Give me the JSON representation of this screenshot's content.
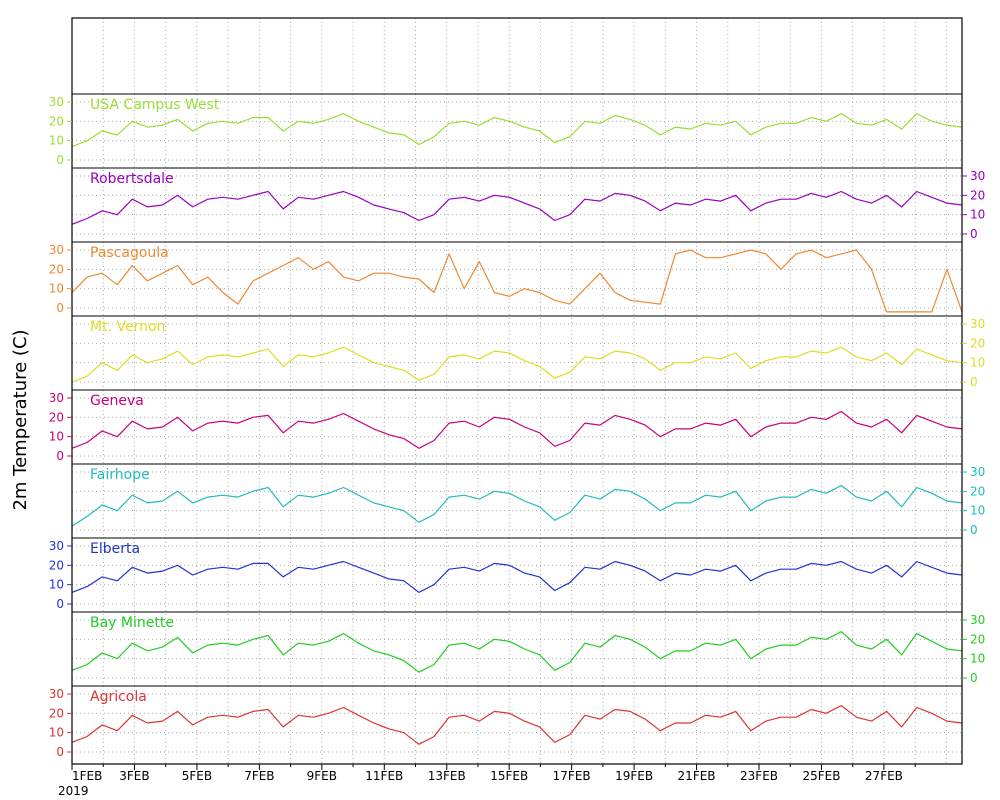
{
  "chart_data": {
    "type": "line",
    "ylabel": "2m Temperature (C)",
    "x_axis": {
      "tick_labels": [
        "1FEB",
        "3FEB",
        "5FEB",
        "7FEB",
        "9FEB",
        "11FEB",
        "13FEB",
        "15FEB",
        "17FEB",
        "19FEB",
        "21FEB",
        "23FEB",
        "25FEB",
        "27FEB"
      ],
      "year_label": "2019",
      "range_days": [
        0,
        28.5
      ]
    },
    "ylim": [
      0,
      30
    ],
    "y_ticks": [
      0,
      10,
      20,
      30
    ],
    "grid": true,
    "series": [
      {
        "name": "USA Campus West",
        "color": "#99dd33",
        "axis": "left",
        "values": [
          7,
          10,
          15,
          13,
          20,
          17,
          18,
          21,
          15,
          19,
          20,
          19,
          22,
          22,
          15,
          20,
          19,
          21,
          24,
          20,
          17,
          14,
          13,
          8,
          12,
          19,
          20,
          18,
          22,
          20,
          17,
          15,
          9,
          12,
          20,
          19,
          23,
          21,
          18,
          13,
          17,
          16,
          19,
          18,
          20,
          13,
          17,
          19,
          19,
          22,
          20,
          24,
          19,
          18,
          21,
          16,
          24,
          20,
          18,
          17
        ]
      },
      {
        "name": "Robertsdale",
        "color": "#9900bb",
        "axis": "right",
        "values": [
          5,
          8,
          12,
          10,
          18,
          14,
          15,
          20,
          14,
          18,
          19,
          18,
          20,
          22,
          13,
          19,
          18,
          20,
          22,
          19,
          15,
          13,
          11,
          7,
          10,
          18,
          19,
          17,
          20,
          19,
          16,
          13,
          7,
          10,
          18,
          17,
          21,
          20,
          17,
          12,
          16,
          15,
          18,
          17,
          20,
          12,
          16,
          18,
          18,
          21,
          19,
          22,
          18,
          16,
          20,
          14,
          22,
          19,
          16,
          15
        ]
      },
      {
        "name": "Pascagoula",
        "color": "#ee8833",
        "axis": "left",
        "values": [
          8,
          16,
          18,
          12,
          22,
          14,
          18,
          22,
          12,
          16,
          8,
          2,
          14,
          18,
          22,
          26,
          20,
          24,
          16,
          14,
          18,
          18,
          16,
          15,
          8,
          28,
          10,
          24,
          8,
          6,
          10,
          8,
          4,
          2,
          10,
          18,
          8,
          4,
          3,
          2,
          28,
          30,
          26,
          26,
          28,
          30,
          28,
          20,
          28,
          30,
          26,
          28,
          30,
          20,
          -2,
          -2,
          -2,
          -2,
          20,
          -2
        ]
      },
      {
        "name": "Mt. Vernon",
        "color": "#dddd22",
        "axis": "right",
        "values": [
          0,
          3,
          10,
          6,
          14,
          10,
          12,
          16,
          9,
          13,
          14,
          13,
          15,
          17,
          8,
          14,
          13,
          15,
          18,
          14,
          10,
          8,
          6,
          1,
          4,
          13,
          14,
          12,
          16,
          15,
          11,
          8,
          2,
          5,
          13,
          12,
          16,
          15,
          12,
          6,
          10,
          10,
          13,
          12,
          15,
          7,
          11,
          13,
          13,
          16,
          15,
          18,
          13,
          11,
          15,
          9,
          17,
          14,
          11,
          10
        ]
      },
      {
        "name": "Geneva",
        "color": "#cc0077",
        "axis": "left",
        "values": [
          4,
          7,
          13,
          10,
          18,
          14,
          15,
          20,
          13,
          17,
          18,
          17,
          20,
          21,
          12,
          18,
          17,
          19,
          22,
          18,
          14,
          11,
          9,
          4,
          8,
          17,
          18,
          15,
          20,
          19,
          15,
          12,
          5,
          8,
          17,
          16,
          21,
          19,
          16,
          10,
          14,
          14,
          17,
          16,
          19,
          10,
          15,
          17,
          17,
          20,
          19,
          23,
          17,
          15,
          19,
          12,
          21,
          18,
          15,
          14
        ]
      },
      {
        "name": "Fairhope",
        "color": "#22bbbb",
        "axis": "right",
        "values": [
          2,
          7,
          13,
          10,
          18,
          14,
          15,
          20,
          14,
          17,
          18,
          17,
          20,
          22,
          12,
          18,
          17,
          19,
          22,
          18,
          14,
          12,
          10,
          4,
          8,
          17,
          18,
          16,
          20,
          19,
          15,
          12,
          5,
          9,
          18,
          16,
          21,
          20,
          16,
          10,
          14,
          14,
          18,
          17,
          20,
          10,
          15,
          17,
          17,
          21,
          19,
          23,
          17,
          15,
          20,
          12,
          22,
          19,
          15,
          14
        ]
      },
      {
        "name": "Elberta",
        "color": "#2233cc",
        "axis": "left",
        "values": [
          6,
          9,
          14,
          12,
          19,
          16,
          17,
          20,
          15,
          18,
          19,
          18,
          21,
          21,
          14,
          19,
          18,
          20,
          22,
          19,
          16,
          13,
          12,
          6,
          10,
          18,
          19,
          17,
          21,
          20,
          16,
          14,
          7,
          11,
          19,
          18,
          22,
          20,
          17,
          12,
          16,
          15,
          18,
          17,
          20,
          12,
          16,
          18,
          18,
          21,
          20,
          22,
          18,
          16,
          20,
          14,
          22,
          19,
          16,
          15
        ]
      },
      {
        "name": "Bay Minette",
        "color": "#22cc22",
        "axis": "right",
        "values": [
          4,
          7,
          13,
          10,
          18,
          14,
          16,
          21,
          13,
          17,
          18,
          17,
          20,
          22,
          12,
          18,
          17,
          19,
          23,
          18,
          14,
          12,
          9,
          3,
          7,
          17,
          18,
          15,
          20,
          19,
          15,
          12,
          4,
          8,
          18,
          16,
          22,
          20,
          16,
          10,
          14,
          14,
          18,
          17,
          20,
          10,
          15,
          17,
          17,
          21,
          20,
          24,
          17,
          15,
          20,
          12,
          23,
          19,
          15,
          14
        ]
      },
      {
        "name": "Agricola",
        "color": "#dd3333",
        "axis": "left",
        "values": [
          5,
          8,
          14,
          11,
          19,
          15,
          16,
          21,
          14,
          18,
          19,
          18,
          21,
          22,
          13,
          19,
          18,
          20,
          23,
          19,
          15,
          12,
          10,
          4,
          8,
          18,
          19,
          16,
          21,
          20,
          16,
          13,
          5,
          9,
          19,
          17,
          22,
          21,
          17,
          11,
          15,
          15,
          19,
          18,
          21,
          11,
          16,
          18,
          18,
          22,
          20,
          24,
          18,
          16,
          21,
          13,
          23,
          20,
          16,
          15
        ]
      }
    ]
  }
}
